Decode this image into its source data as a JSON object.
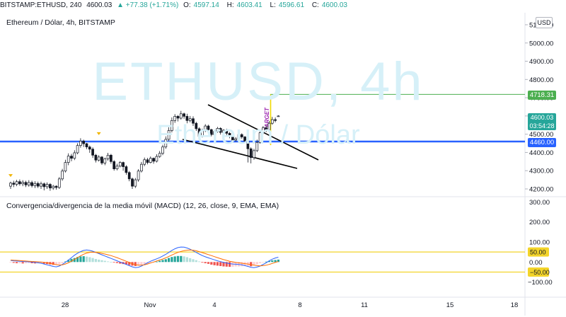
{
  "topbar": {
    "symbol": "BITSTAMP:ETHUSD, 240",
    "last": "4600.03",
    "change": "▲ +77.38 (+1.71%)",
    "o_label": "O:",
    "o_val": "4597.14",
    "h_label": "H:",
    "h_val": "4603.41",
    "l_label": "L:",
    "l_val": "4596.61",
    "c_label": "C:",
    "c_val": "4600.03"
  },
  "pane_title": "Ethereum / Dólar, 4h, BITSTAMP",
  "currency_button": "USD",
  "watermark": {
    "symbol": "ETHUSD, 4h",
    "name": "Ethereum / Dólar"
  },
  "target_label": "TARGET",
  "macd_title": "Convergencia/divergencia de la media móvil (MACD) (12, 26, close, 9, EMA, EMA)",
  "price_tags": {
    "target": "4718.31",
    "current": "4600.03",
    "countdown": "03:54:28",
    "support": "4460.00"
  },
  "colors": {
    "up": "#26a69a",
    "down": "#ef5350",
    "support_line": "#2962ff",
    "target_line": "#4caf50",
    "macd_line": "#2962ff",
    "signal_line": "#ff6d00",
    "macd_level": "#f3d42a",
    "target_arrow": "#f0d800",
    "target_text": "#9c27b0"
  },
  "chart_data": [
    {
      "type": "candlestick",
      "title": "Ethereum / Dólar, 4h, BITSTAMP",
      "y_ticks": [
        5100,
        5000,
        4900,
        4800,
        4700,
        4600,
        4500,
        4400,
        4300,
        4200
      ],
      "ylim": [
        4170,
        5130
      ],
      "x_ticks": [
        "28",
        "Nov",
        "4",
        "8",
        "11",
        "15",
        "18"
      ],
      "hlines": [
        {
          "name": "support",
          "value": 4460.0
        },
        {
          "name": "target",
          "value": 4718.31
        }
      ],
      "candles": [
        [
          4215,
          4232,
          4200,
          4240
        ],
        [
          4232,
          4225,
          4210,
          4245
        ],
        [
          4225,
          4240,
          4215,
          4250
        ],
        [
          4240,
          4228,
          4218,
          4252
        ],
        [
          4228,
          4236,
          4215,
          4248
        ],
        [
          4236,
          4222,
          4210,
          4245
        ],
        [
          4222,
          4235,
          4212,
          4248
        ],
        [
          4235,
          4218,
          4208,
          4245
        ],
        [
          4218,
          4230,
          4205,
          4242
        ],
        [
          4230,
          4215,
          4205,
          4240
        ],
        [
          4215,
          4228,
          4200,
          4240
        ],
        [
          4228,
          4212,
          4192,
          4235
        ],
        [
          4212,
          4225,
          4200,
          4236
        ],
        [
          4225,
          4205,
          4190,
          4232
        ],
        [
          4205,
          4215,
          4195,
          4222
        ],
        [
          4215,
          4208,
          4196,
          4220
        ],
        [
          4208,
          4255,
          4200,
          4265
        ],
        [
          4255,
          4298,
          4245,
          4310
        ],
        [
          4298,
          4345,
          4290,
          4360
        ],
        [
          4345,
          4380,
          4330,
          4395
        ],
        [
          4380,
          4368,
          4352,
          4392
        ],
        [
          4368,
          4398,
          4358,
          4412
        ],
        [
          4398,
          4438,
          4390,
          4450
        ],
        [
          4438,
          4462,
          4426,
          4478
        ],
        [
          4462,
          4448,
          4430,
          4470
        ],
        [
          4448,
          4430,
          4418,
          4452
        ],
        [
          4430,
          4418,
          4398,
          4438
        ],
        [
          4418,
          4385,
          4370,
          4428
        ],
        [
          4385,
          4358,
          4345,
          4392
        ],
        [
          4358,
          4375,
          4350,
          4385
        ],
        [
          4375,
          4342,
          4332,
          4380
        ],
        [
          4342,
          4365,
          4330,
          4372
        ],
        [
          4365,
          4385,
          4355,
          4398
        ],
        [
          4385,
          4350,
          4338,
          4392
        ],
        [
          4350,
          4310,
          4300,
          4358
        ],
        [
          4310,
          4325,
          4302,
          4338
        ],
        [
          4325,
          4345,
          4318,
          4352
        ],
        [
          4345,
          4322,
          4300,
          4350
        ],
        [
          4322,
          4290,
          4278,
          4330
        ],
        [
          4290,
          4255,
          4242,
          4298
        ],
        [
          4255,
          4215,
          4200,
          4262
        ],
        [
          4215,
          4250,
          4205,
          4260
        ],
        [
          4250,
          4298,
          4240,
          4308
        ],
        [
          4298,
          4335,
          4290,
          4348
        ],
        [
          4335,
          4360,
          4325,
          4372
        ],
        [
          4360,
          4345,
          4335,
          4370
        ],
        [
          4345,
          4368,
          4340,
          4378
        ],
        [
          4368,
          4352,
          4338,
          4372
        ],
        [
          4352,
          4378,
          4345,
          4390
        ],
        [
          4378,
          4395,
          4370,
          4408
        ],
        [
          4395,
          4430,
          4385,
          4442
        ],
        [
          4430,
          4472,
          4420,
          4488
        ],
        [
          4472,
          4520,
          4462,
          4538
        ],
        [
          4520,
          4575,
          4510,
          4592
        ],
        [
          4575,
          4598,
          4562,
          4610
        ],
        [
          4598,
          4588,
          4570,
          4605
        ],
        [
          4588,
          4612,
          4580,
          4628
        ],
        [
          4612,
          4598,
          4585,
          4618
        ],
        [
          4598,
          4575,
          4560,
          4612
        ],
        [
          4575,
          4585,
          4565,
          4600
        ],
        [
          4585,
          4560,
          4545,
          4598
        ],
        [
          4560,
          4530,
          4518,
          4568
        ],
        [
          4530,
          4488,
          4475,
          4538
        ],
        [
          4488,
          4520,
          4482,
          4530
        ],
        [
          4520,
          4545,
          4512,
          4555
        ],
        [
          4545,
          4525,
          4510,
          4552
        ],
        [
          4525,
          4498,
          4488,
          4530
        ],
        [
          4498,
          4515,
          4490,
          4522
        ],
        [
          4515,
          4532,
          4508,
          4540
        ],
        [
          4532,
          4510,
          4498,
          4538
        ],
        [
          4510,
          4522,
          4502,
          4528
        ],
        [
          4522,
          4505,
          4492,
          4530
        ],
        [
          4505,
          4490,
          4478,
          4512
        ],
        [
          4490,
          4468,
          4458,
          4498
        ],
        [
          4468,
          4475,
          4460,
          4484
        ],
        [
          4475,
          4498,
          4470,
          4508
        ],
        [
          4498,
          4485,
          4475,
          4505
        ],
        [
          4485,
          4462,
          4450,
          4490
        ],
        [
          4462,
          4420,
          4345,
          4470
        ],
        [
          4420,
          4372,
          4340,
          4428
        ],
        [
          4372,
          4410,
          4360,
          4420
        ],
        [
          4410,
          4455,
          4402,
          4470
        ],
        [
          4455,
          4508,
          4448,
          4520
        ],
        [
          4508,
          4535,
          4500,
          4545
        ],
        [
          4535,
          4525,
          4512,
          4548
        ],
        [
          4525,
          4560,
          4518,
          4572
        ],
        [
          4560,
          4580,
          4552,
          4595
        ],
        [
          4580,
          4575,
          4565,
          4592
        ],
        [
          4597.14,
          4600.03,
          4596.61,
          4603.41
        ]
      ]
    },
    {
      "type": "macd",
      "title": "Convergencia/divergencia de la media móvil (MACD) (12, 26, close, 9, EMA, EMA)",
      "params": [
        12,
        26,
        "close",
        9,
        "EMA",
        "EMA"
      ],
      "y_ticks": [
        300,
        200,
        100,
        0,
        -100
      ],
      "ylim": [
        -150,
        330
      ],
      "levels": [
        50,
        -50
      ],
      "histogram": [
        -2,
        -4,
        -6,
        -6,
        -7,
        -6,
        -5,
        -6,
        -7,
        -6,
        -5,
        -8,
        -10,
        -12,
        -14,
        -13,
        -10,
        -6,
        3,
        10,
        16,
        20,
        25,
        28,
        29,
        27,
        24,
        20,
        15,
        12,
        9,
        6,
        3,
        1,
        -2,
        -5,
        -8,
        -10,
        -12,
        -15,
        -18,
        -20,
        -18,
        -14,
        -10,
        -7,
        -4,
        -2,
        2,
        6,
        10,
        14,
        20,
        25,
        28,
        30,
        30,
        28,
        24,
        19,
        14,
        9,
        3,
        -3,
        -6,
        -9,
        -13,
        -16,
        -18,
        -20,
        -22,
        -23,
        -24,
        -24,
        -22,
        -22,
        -21,
        -20,
        -20,
        -21,
        -17,
        -12,
        -6,
        -2,
        2,
        5,
        8,
        10,
        12
      ],
      "macd_line": [
        8,
        6,
        5,
        4,
        3,
        2,
        1,
        0,
        -2,
        -4,
        -6,
        -10,
        -14,
        -18,
        -22,
        -24,
        -20,
        -12,
        -2,
        10,
        22,
        34,
        44,
        52,
        58,
        60,
        58,
        54,
        48,
        42,
        36,
        30,
        24,
        18,
        12,
        6,
        0,
        -6,
        -12,
        -18,
        -24,
        -28,
        -26,
        -20,
        -12,
        -4,
        4,
        10,
        16,
        22,
        30,
        38,
        48,
        58,
        66,
        72,
        75,
        74,
        70,
        64,
        56,
        48,
        40,
        32,
        26,
        21,
        16,
        11,
        6,
        2,
        -2,
        -5,
        -8,
        -10,
        -11,
        -12,
        -14,
        -18,
        -22,
        -26,
        -28,
        -25,
        -20,
        -12,
        -4,
        6,
        14,
        20,
        24
      ],
      "signal_line": [
        10,
        9,
        8,
        7,
        6,
        5,
        4,
        3,
        2,
        1,
        0,
        -2,
        -4,
        -7,
        -10,
        -13,
        -15,
        -14,
        -10,
        -4,
        4,
        13,
        22,
        31,
        39,
        45,
        48,
        49,
        48,
        46,
        43,
        40,
        36,
        32,
        27,
        22,
        16,
        10,
        4,
        -2,
        -8,
        -13,
        -16,
        -16,
        -14,
        -10,
        -5,
        0,
        5,
        10,
        15,
        21,
        28,
        35,
        42,
        48,
        53,
        57,
        59,
        60,
        59,
        56,
        52,
        47,
        42,
        37,
        32,
        27,
        22,
        17,
        12,
        8,
        4,
        1,
        -2,
        -4,
        -6,
        -8,
        -10,
        -13,
        -16,
        -18,
        -19,
        -18,
        -16,
        -12,
        -7,
        -2,
        3
      ]
    }
  ]
}
